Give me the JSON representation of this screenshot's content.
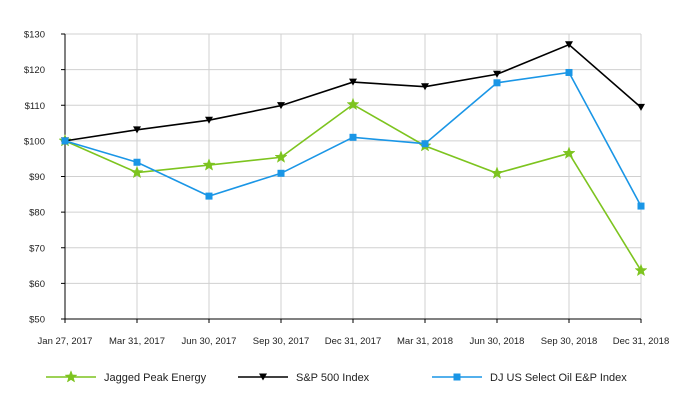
{
  "chart_data": {
    "type": "line",
    "title": "",
    "xlabel": "",
    "ylabel": "",
    "categories": [
      "Jan 27, 2017",
      "Mar 31, 2017",
      "Jun 30, 2017",
      "Sep 30, 2017",
      "Dec 31, 2017",
      "Mar 31, 2018",
      "Jun 30, 2018",
      "Sep 30, 2018",
      "Dec 31, 2018"
    ],
    "ylim": [
      50,
      130
    ],
    "yticks": [
      50,
      60,
      70,
      80,
      90,
      100,
      110,
      120,
      130
    ],
    "ytick_labels": [
      "$50",
      "$60",
      "$70",
      "$80",
      "$90",
      "$100",
      "$110",
      "$120",
      "$130"
    ],
    "grid": true,
    "legend_position": "bottom",
    "series": [
      {
        "name": "Jagged Peak Energy",
        "color": "#7dc41f",
        "marker": "star",
        "values": [
          100,
          91.1,
          93.2,
          95.4,
          110.2,
          98.6,
          90.9,
          96.5,
          63.6
        ]
      },
      {
        "name": "S&P 500 Index",
        "color": "#000000",
        "marker": "triangle-down",
        "values": [
          100,
          103.1,
          105.8,
          109.9,
          116.5,
          115.2,
          118.7,
          127,
          109.4
        ]
      },
      {
        "name": "DJ US Select Oil E&P Index",
        "color": "#1a96e6",
        "marker": "square",
        "values": [
          100,
          94,
          84.5,
          90.9,
          101,
          99.2,
          116.3,
          119.2,
          81.7
        ]
      }
    ]
  }
}
